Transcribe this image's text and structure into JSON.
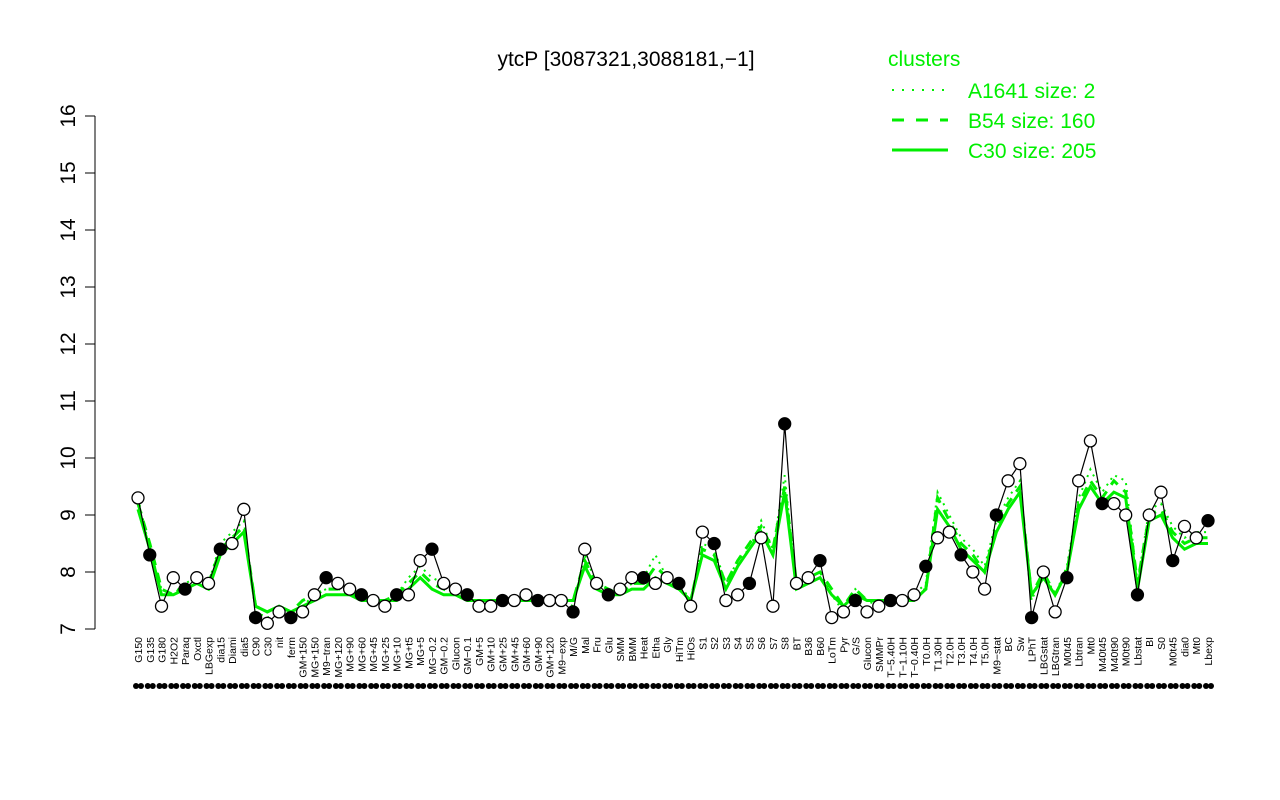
{
  "chart_data": {
    "type": "line",
    "title": "ytcP [3087321,3088181,−1]",
    "xlabel": "",
    "ylabel": "",
    "ylim": [
      7,
      16
    ],
    "y_ticks": [
      "7",
      "8",
      "9",
      "10",
      "11",
      "12",
      "13",
      "14",
      "15",
      "16"
    ],
    "x_labels": [
      "G150",
      "G135",
      "G180",
      "H2O2",
      "Paraq",
      "Oxctl",
      "LBGexp",
      "dia15",
      "Diami",
      "dia5",
      "C90",
      "C30",
      "nit",
      "ferm",
      "GM+150",
      "MG+150",
      "M9−tran",
      "MG+120",
      "MG+90",
      "MG+60",
      "MG+45",
      "MG+25",
      "MG+10",
      "MG+t5",
      "MG+5",
      "MG−0.2",
      "GM−0.2",
      "Glucon",
      "GM−0.1",
      "GM+5",
      "GM+10",
      "GM+25",
      "GM+45",
      "GM+60",
      "GM+90",
      "GM+120",
      "M9−exp",
      "M/G",
      "Mal",
      "Fru",
      "Glu",
      "SMM",
      "BMM",
      "Heat",
      "Etha",
      "Gly",
      "HiTm",
      "HiOs",
      "S1",
      "S2",
      "S3",
      "S4",
      "S5",
      "S6",
      "S7",
      "S8",
      "BT",
      "B36",
      "B60",
      "LoTm",
      "Pyr",
      "G/S",
      "Glucon",
      "SMMPr",
      "T−5.40H",
      "T−1.10H",
      "T−0.40H",
      "T0.0H",
      "T1.30H",
      "T2.0H",
      "T3.0H",
      "T4.0H",
      "T5.0H",
      "M9−stat",
      "BC",
      "Sw",
      "LPhT",
      "LBGstat",
      "LBGtran",
      "M0t45",
      "Lbtran",
      "Mt0",
      "M40t45",
      "M40t90",
      "M0t90",
      "Lbstat",
      "BI",
      "S0",
      "M0t45",
      "dia0",
      "Mt0",
      "Lbexp"
    ],
    "series": [
      {
        "name": "A1641 size: 2",
        "style": "dotted",
        "color": "#00ee00",
        "values": [
          9.3,
          8.4,
          7.7,
          7.6,
          7.8,
          7.9,
          7.8,
          8.5,
          8.7,
          8.9,
          7.3,
          7.2,
          7.3,
          7.2,
          7.4,
          7.6,
          7.7,
          7.7,
          7.6,
          7.6,
          7.5,
          7.5,
          7.6,
          7.9,
          8.1,
          7.9,
          7.8,
          7.7,
          7.5,
          7.5,
          7.5,
          7.5,
          7.5,
          7.6,
          7.5,
          7.5,
          7.5,
          7.4,
          8.3,
          7.8,
          7.7,
          7.6,
          7.8,
          7.9,
          8.3,
          7.9,
          7.8,
          7.5,
          8.5,
          8.4,
          7.8,
          8.2,
          8.4,
          8.9,
          8.4,
          9.7,
          7.7,
          7.9,
          8.0,
          7.6,
          7.3,
          7.7,
          7.5,
          7.4,
          7.5,
          7.5,
          7.6,
          7.8,
          9.4,
          9.0,
          8.6,
          8.4,
          8.1,
          8.9,
          9.3,
          9.6,
          7.5,
          8.0,
          7.6,
          8.1,
          9.3,
          9.8,
          9.4,
          9.7,
          9.6,
          7.8,
          9.1,
          9.2,
          8.8,
          8.6,
          8.7,
          8.7
        ]
      },
      {
        "name": "B54 size: 160",
        "style": "dashed",
        "color": "#00ee00",
        "values": [
          9.2,
          8.5,
          7.7,
          7.6,
          7.8,
          7.9,
          7.8,
          8.4,
          8.6,
          8.8,
          7.4,
          7.3,
          7.4,
          7.3,
          7.5,
          7.6,
          7.7,
          7.7,
          7.6,
          7.6,
          7.5,
          7.5,
          7.6,
          7.8,
          8.0,
          7.8,
          7.7,
          7.6,
          7.5,
          7.5,
          7.5,
          7.5,
          7.5,
          7.5,
          7.5,
          7.5,
          7.5,
          7.5,
          8.2,
          7.8,
          7.7,
          7.6,
          7.8,
          7.8,
          8.1,
          7.9,
          7.7,
          7.5,
          8.4,
          8.3,
          7.8,
          8.2,
          8.5,
          8.8,
          8.4,
          9.5,
          7.8,
          7.9,
          8.0,
          7.7,
          7.4,
          7.7,
          7.5,
          7.5,
          7.5,
          7.5,
          7.6,
          7.7,
          9.3,
          8.9,
          8.5,
          8.3,
          8.0,
          8.8,
          9.2,
          9.5,
          7.6,
          8.0,
          7.6,
          8.0,
          9.2,
          9.6,
          9.3,
          9.6,
          9.4,
          7.8,
          9.0,
          9.1,
          8.7,
          8.5,
          8.6,
          8.6
        ]
      },
      {
        "name": "C30 size: 205",
        "style": "solid",
        "color": "#00ee00",
        "values": [
          9.1,
          8.4,
          7.6,
          7.6,
          7.7,
          7.8,
          7.7,
          8.3,
          8.5,
          8.7,
          7.4,
          7.3,
          7.4,
          7.3,
          7.4,
          7.5,
          7.6,
          7.6,
          7.6,
          7.5,
          7.5,
          7.5,
          7.5,
          7.7,
          7.9,
          7.7,
          7.6,
          7.6,
          7.5,
          7.5,
          7.5,
          7.5,
          7.5,
          7.5,
          7.5,
          7.5,
          7.5,
          7.5,
          8.1,
          7.7,
          7.6,
          7.6,
          7.7,
          7.7,
          7.9,
          7.8,
          7.7,
          7.5,
          8.3,
          8.2,
          7.7,
          8.1,
          8.4,
          8.7,
          8.3,
          9.4,
          7.7,
          7.8,
          7.9,
          7.6,
          7.4,
          7.6,
          7.5,
          7.5,
          7.5,
          7.5,
          7.5,
          7.7,
          9.1,
          8.8,
          8.4,
          8.2,
          8.0,
          8.7,
          9.1,
          9.4,
          7.6,
          7.9,
          7.6,
          8.0,
          9.1,
          9.5,
          9.2,
          9.4,
          9.3,
          7.7,
          8.9,
          9.0,
          8.6,
          8.4,
          8.5,
          8.5
        ]
      },
      {
        "name": "ytcP",
        "style": "points",
        "color": "#000000",
        "values": [
          9.3,
          8.3,
          7.4,
          7.9,
          7.7,
          7.9,
          7.8,
          8.4,
          8.5,
          9.1,
          7.2,
          7.1,
          7.3,
          7.2,
          7.3,
          7.6,
          7.9,
          7.8,
          7.7,
          7.6,
          7.5,
          7.4,
          7.6,
          7.6,
          8.2,
          8.4,
          7.8,
          7.7,
          7.6,
          7.4,
          7.4,
          7.5,
          7.5,
          7.6,
          7.5,
          7.5,
          7.5,
          7.3,
          8.4,
          7.8,
          7.6,
          7.7,
          7.9,
          7.9,
          7.8,
          7.9,
          7.8,
          7.4,
          8.7,
          8.5,
          7.5,
          7.6,
          7.8,
          8.6,
          7.4,
          10.6,
          7.8,
          7.9,
          8.2,
          7.2,
          7.3,
          7.5,
          7.3,
          7.4,
          7.5,
          7.5,
          7.6,
          8.1,
          8.6,
          8.7,
          8.3,
          8.0,
          7.7,
          9.0,
          9.6,
          9.9,
          7.2,
          8.0,
          7.3,
          7.9,
          9.6,
          10.3,
          9.2,
          9.2,
          9.0,
          7.6,
          9.0,
          9.4,
          8.2,
          8.8,
          8.6,
          8.9
        ]
      }
    ],
    "legend": {
      "title": "clusters",
      "position": "top-right"
    },
    "grid": false
  }
}
